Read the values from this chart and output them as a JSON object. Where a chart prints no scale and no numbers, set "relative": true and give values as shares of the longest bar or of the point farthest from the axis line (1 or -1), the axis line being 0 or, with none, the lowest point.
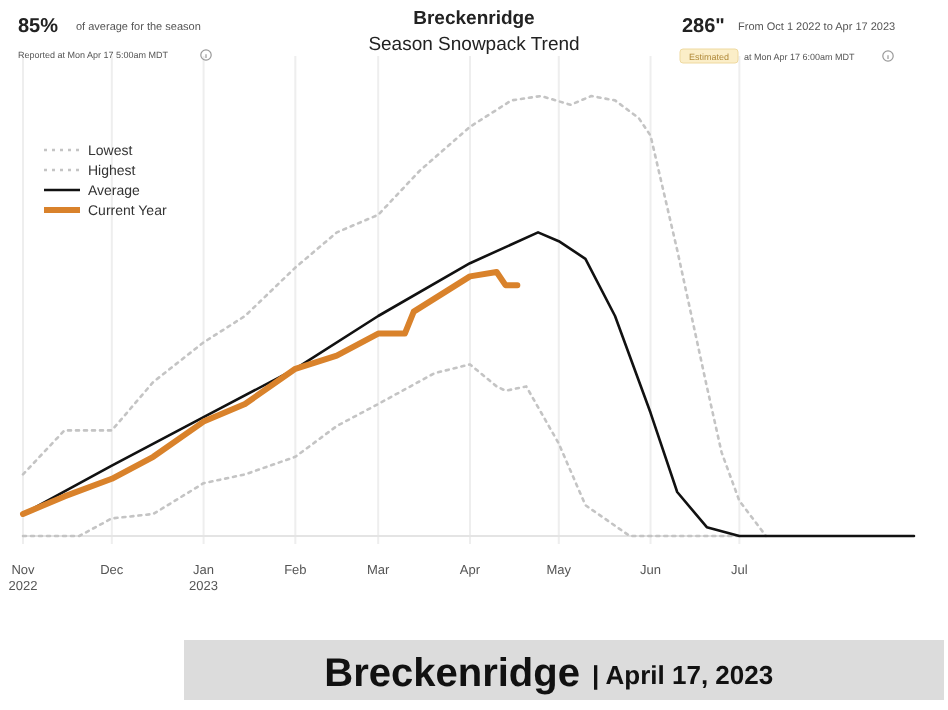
{
  "chart_data": {
    "type": "line",
    "title": "Breckenridge",
    "subtitle": "Season Snowpack Trend",
    "relative": true,
    "xlim": [
      "2022-11-01",
      "2023-08-29"
    ],
    "xticks": [
      {
        "value": "2022-11-01",
        "label": "Nov\n2022"
      },
      {
        "value": "2022-12-01",
        "label": "Dec"
      },
      {
        "value": "2023-01-01",
        "label": "Jan\n2023"
      },
      {
        "value": "2023-02-01",
        "label": "Feb"
      },
      {
        "value": "2023-03-01",
        "label": "Mar"
      },
      {
        "value": "2023-04-01",
        "label": "Apr"
      },
      {
        "value": "2023-05-01",
        "label": "May"
      },
      {
        "value": "2023-06-01",
        "label": "Jun"
      },
      {
        "value": "2023-07-01",
        "label": "Jul"
      }
    ],
    "grid": "x",
    "legend": "top left",
    "series": [
      {
        "name": "Lowest",
        "color": "#c4c4c4",
        "line_style": "dotted",
        "x": [
          "2022-11-01",
          "2022-11-20",
          "2022-12-01",
          "2022-12-15",
          "2023-01-01",
          "2023-01-15",
          "2023-02-01",
          "2023-02-15",
          "2023-03-01",
          "2023-03-20",
          "2023-04-01",
          "2023-04-10",
          "2023-04-13",
          "2023-04-20",
          "2023-05-01",
          "2023-05-10",
          "2023-05-25",
          "2023-07-01"
        ],
        "values": [
          0,
          0,
          0.04,
          0.05,
          0.12,
          0.14,
          0.18,
          0.25,
          0.3,
          0.37,
          0.39,
          0.34,
          0.33,
          0.34,
          0.21,
          0.07,
          0,
          0
        ]
      },
      {
        "name": "Highest",
        "color": "#c4c4c4",
        "line_style": "dotted",
        "x": [
          "2022-11-01",
          "2022-11-15",
          "2022-12-01",
          "2022-12-15",
          "2023-01-01",
          "2023-01-15",
          "2023-02-01",
          "2023-02-15",
          "2023-03-01",
          "2023-03-15",
          "2023-04-01",
          "2023-04-15",
          "2023-04-25",
          "2023-05-05",
          "2023-05-12",
          "2023-05-20",
          "2023-05-28",
          "2023-06-01",
          "2023-06-10",
          "2023-06-20",
          "2023-06-25",
          "2023-07-01",
          "2023-07-10"
        ],
        "values": [
          0.14,
          0.24,
          0.24,
          0.35,
          0.44,
          0.5,
          0.61,
          0.69,
          0.73,
          0.83,
          0.93,
          0.99,
          1,
          0.98,
          1,
          0.99,
          0.95,
          0.91,
          0.65,
          0.34,
          0.19,
          0.08,
          0
        ]
      },
      {
        "name": "Average",
        "color": "#111111",
        "line_style": "solid",
        "x": [
          "2022-11-01",
          "2022-12-01",
          "2023-01-01",
          "2023-02-01",
          "2023-03-01",
          "2023-04-01",
          "2023-04-24",
          "2023-05-01",
          "2023-05-10",
          "2023-05-20",
          "2023-06-01",
          "2023-06-10",
          "2023-06-20",
          "2023-07-01",
          "2023-08-29"
        ],
        "values": [
          0.05,
          0.16,
          0.27,
          0.38,
          0.5,
          0.62,
          0.69,
          0.67,
          0.63,
          0.5,
          0.28,
          0.1,
          0.02,
          0,
          0
        ]
      },
      {
        "name": "Current Year",
        "color": "#d9822b",
        "line_style": "solid",
        "x": [
          "2022-11-01",
          "2022-11-15",
          "2022-12-01",
          "2022-12-15",
          "2023-01-01",
          "2023-01-15",
          "2023-02-01",
          "2023-02-15",
          "2023-03-01",
          "2023-03-10",
          "2023-03-13",
          "2023-04-01",
          "2023-04-10",
          "2023-04-13",
          "2023-04-17"
        ],
        "values": [
          0.05,
          0.09,
          0.13,
          0.18,
          0.26,
          0.3,
          0.38,
          0.41,
          0.46,
          0.46,
          0.51,
          0.59,
          0.6,
          0.57,
          0.57
        ]
      }
    ],
    "annotations": [
      "85%",
      "of average for the season",
      "Reported at Mon Apr 17 5:00am MDT",
      "286\"",
      "From Oct 1 2022 to Apr 17 2023",
      "Estimated",
      "at Mon Apr 17 6:00am MDT",
      "Breckenridge",
      "| April 17, 2023"
    ]
  }
}
